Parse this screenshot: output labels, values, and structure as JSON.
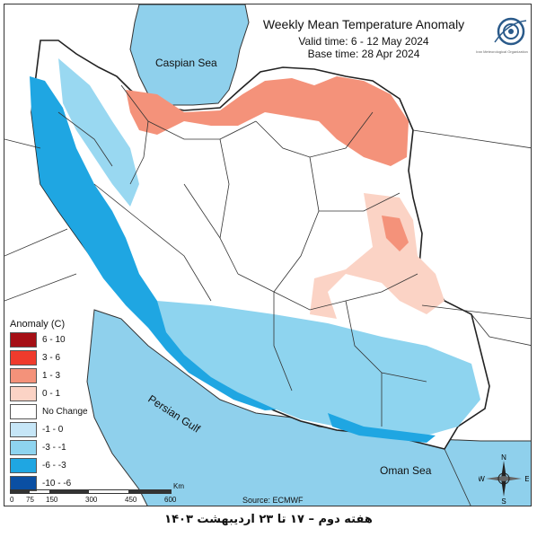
{
  "map": {
    "title": "Weekly Mean Temperature Anomaly",
    "valid_time": "Valid time: 6 - 12 May 2024",
    "base_time": "Base time: 28 Apr 2024",
    "source": "Source: ECMWF",
    "seas": {
      "caspian": "Caspian Sea",
      "gulf": "Persian Gulf",
      "oman": "Oman Sea"
    },
    "caption": "هفته دوم – ۱۷ تا ۲۳ اردیبهشت ۱۴۰۳"
  },
  "legend": {
    "title": "Anomaly (C)",
    "items": [
      {
        "label": "6 - 10",
        "color": "#a50f15"
      },
      {
        "label": "3 - 6",
        "color": "#ef3b2c"
      },
      {
        "label": "1 - 3",
        "color": "#f4927a"
      },
      {
        "label": "0 - 1",
        "color": "#fbd3c5"
      },
      {
        "label": "No Change",
        "color": "#ffffff"
      },
      {
        "label": "-1 - 0",
        "color": "#c6e6f7"
      },
      {
        "label": "-3 - -1",
        "color": "#8ed4ef"
      },
      {
        "label": "-6 - -3",
        "color": "#1fa6e2"
      },
      {
        "label": "-10 - -6",
        "color": "#0a4fa3"
      }
    ]
  },
  "scale_bar": {
    "unit": "Km",
    "ticks": [
      "0",
      "75",
      "150",
      "300",
      "450",
      "600"
    ]
  },
  "compass": {
    "n": "N",
    "s": "S",
    "e": "E",
    "w": "W"
  },
  "logo": {
    "text": "Iran Meteorological Organization"
  },
  "colors": {
    "sea": "#8fd0ec",
    "border": "#333333"
  }
}
